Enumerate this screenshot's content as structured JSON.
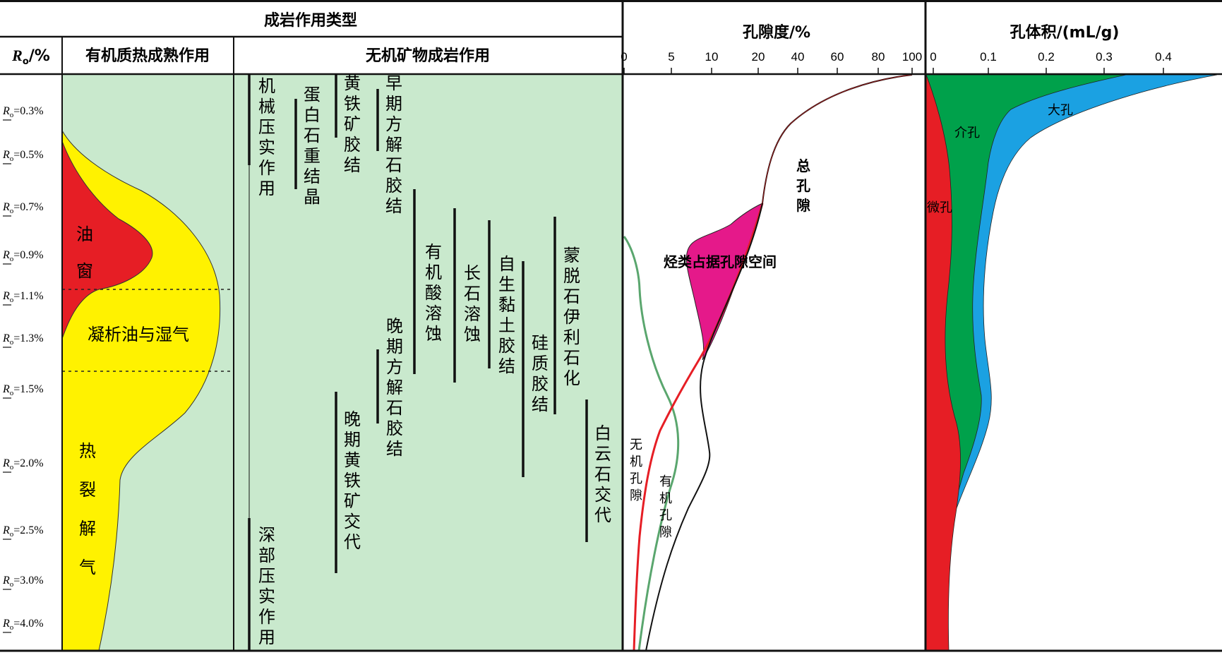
{
  "headers": {
    "diagenesis_type": "成岩作用类型",
    "ro_axis": "/%",
    "organic": "有机质热成熟作用",
    "inorganic": "无机矿物成岩作用",
    "porosity": "孔隙度/%",
    "pore_volume": "孔体积/(mL/g)"
  },
  "ro_symbol": "R",
  "ro_sub": "o",
  "ro_levels": [
    "=0.3%",
    "=0.5%",
    "=0.7%",
    "=0.9%",
    "=1.1%",
    "=1.3%",
    "=1.5%",
    "=2.0%",
    "=2.5%",
    "=3.0%",
    "=4.0%"
  ],
  "organic_zones": {
    "oil_window": "油窗",
    "condensate": "凝析油与湿气",
    "cracking_gas": "热裂解气"
  },
  "processes": [
    "机械压实作用",
    "蛋白石重结晶",
    "黄铁矿胶结",
    "早期方解石胶结",
    "有机酸溶蚀",
    "长石溶蚀",
    "自生黏土胶结",
    "硅质胶结",
    "蒙脱石伊利石化",
    "晚期方解石胶结",
    "晚期黄铁矿交代",
    "白云石交代",
    "深部压实作用"
  ],
  "porosity_ticks": [
    "0",
    "5",
    "10",
    "20",
    "40",
    "60",
    "80",
    "100"
  ],
  "porosity_labels": {
    "total": "总孔隙",
    "inorganic": "无机孔隙",
    "organic": "有机孔隙",
    "hydrocarbon": "烃类占据孔隙空间"
  },
  "pore_volume_ticks": [
    "0",
    "0.1",
    "0.2",
    "0.3",
    "0.4"
  ],
  "pore_volume_labels": {
    "macro": "大孔",
    "meso": "介孔",
    "micro": "微孔"
  },
  "colors": {
    "organic_background": "#c9e9cd",
    "inorganic_background": "#c9e9cd",
    "oil_window": "#e61e25",
    "condensate_gas": "#fff200",
    "hydrocarbon_space": "#e5198a",
    "inorganic_pore_line": "#e61e25",
    "organic_pore_line": "#5aa66e",
    "micropore": "#e61e25",
    "mesopore": "#00a14b",
    "macropore": "#1ba1e2"
  }
}
